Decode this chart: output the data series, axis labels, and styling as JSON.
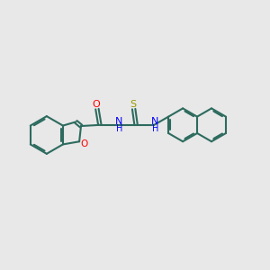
{
  "bg_color": "#e8e8e8",
  "bond_color": "#2d6b5e",
  "O_color": "#ff0000",
  "N_color": "#0000ff",
  "S_color": "#999900",
  "line_width": 1.5,
  "figsize": [
    3.0,
    3.0
  ],
  "dpi": 100,
  "xlim": [
    0,
    12
  ],
  "ylim": [
    0,
    10
  ]
}
